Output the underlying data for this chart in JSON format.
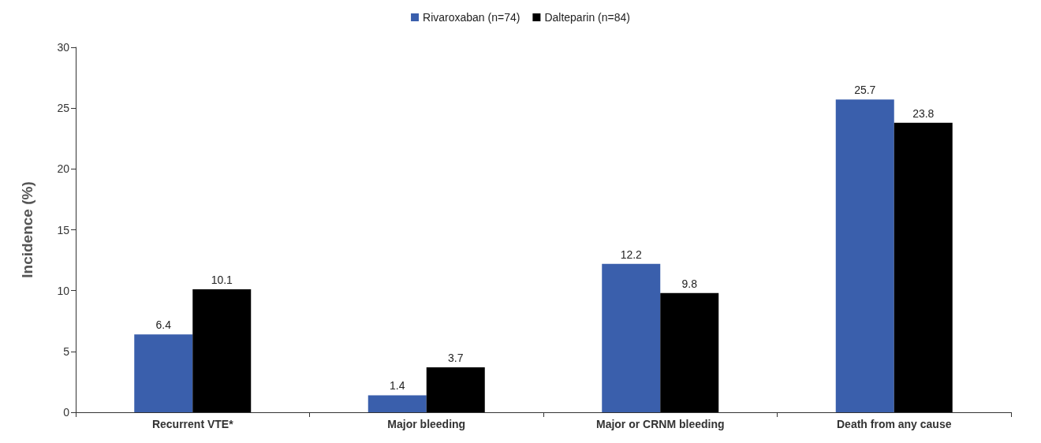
{
  "chart_data": {
    "type": "bar",
    "ylabel": "Incidence (%)",
    "categories": [
      "Recurrent VTE*",
      "Major bleeding",
      "Major or CRNM bleeding",
      "Death from any cause"
    ],
    "series": [
      {
        "name": "Rivaroxaban (n=74)",
        "color": "#3a5fac",
        "values": [
          6.4,
          1.4,
          12.2,
          25.7
        ]
      },
      {
        "name": "Dalteparin (n=84)",
        "color": "#000000",
        "values": [
          10.1,
          3.7,
          9.8,
          23.8
        ]
      }
    ],
    "ylim": [
      0,
      30
    ],
    "yticks": [
      0,
      5,
      10,
      15,
      20,
      25,
      30
    ],
    "grid": false,
    "legend": "top",
    "data_labels": true
  }
}
